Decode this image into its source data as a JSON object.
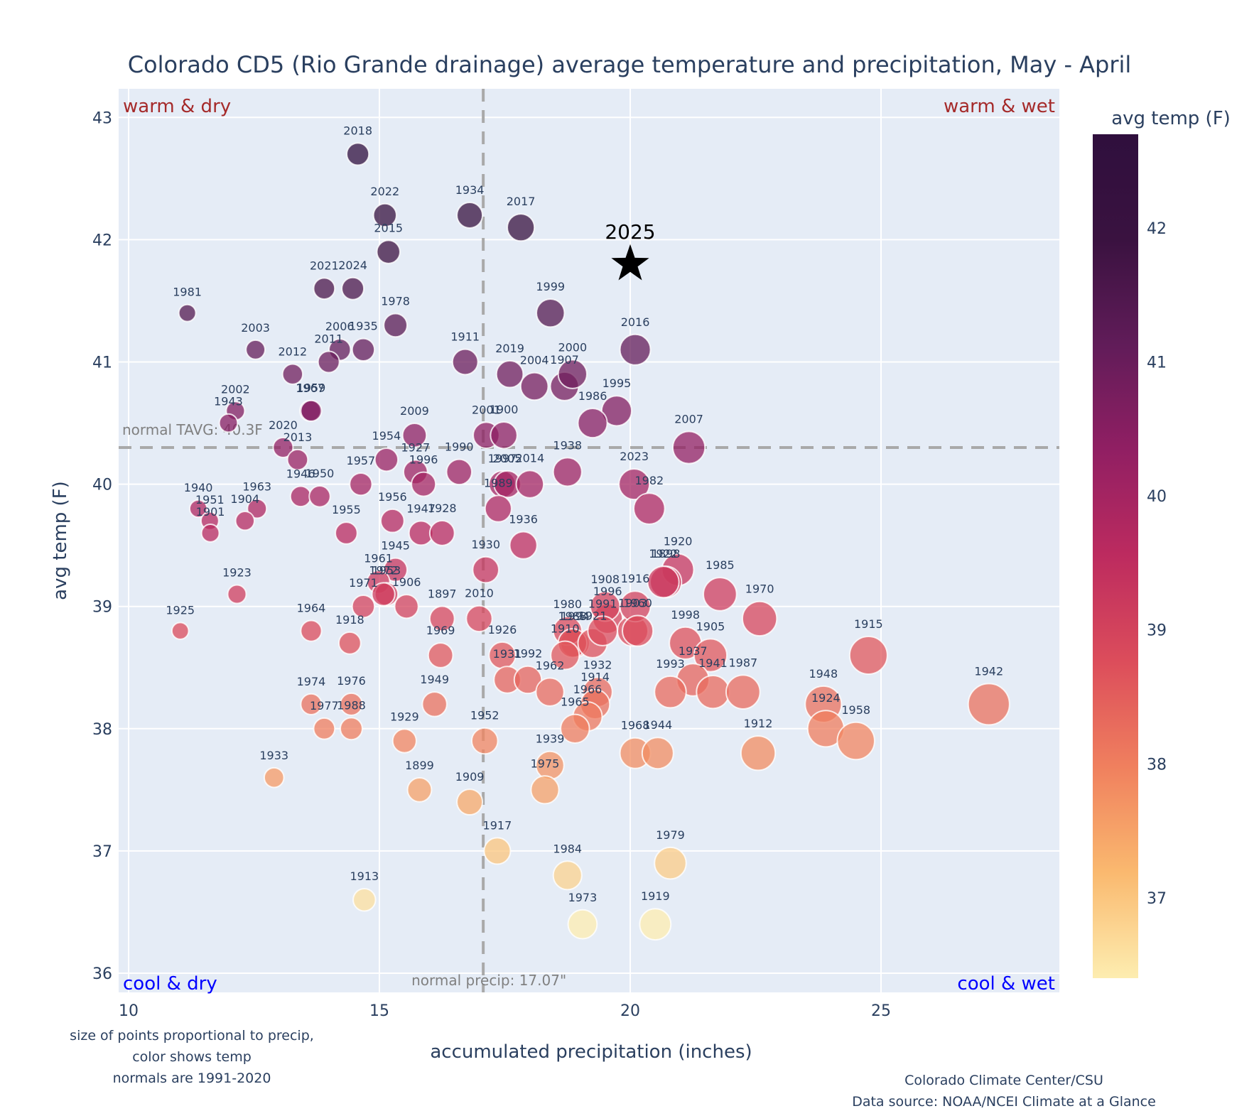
{
  "chart_data": {
    "type": "scatter",
    "title": "Colorado CD5 (Rio Grande drainage) average temperature and precipitation, May - April",
    "xlabel": "accumulated precipitation (inches)",
    "ylabel": "avg temp (F)",
    "xlim": [
      9.3,
      28.5
    ],
    "ylim": [
      35.84,
      43.13
    ],
    "xticks": [
      10,
      15,
      20,
      25
    ],
    "yticks": [
      36,
      37,
      38,
      39,
      40,
      41,
      42,
      43
    ],
    "grid": true,
    "colorbar": {
      "title": "avg temp (F)",
      "range": [
        36.4,
        42.7
      ],
      "ticks": [
        37,
        38,
        39,
        40,
        41,
        42
      ],
      "colorscale": [
        "#fdedb0",
        "#fab96f",
        "#f0805e",
        "#dc4d5b",
        "#bd2b5f",
        "#911f63",
        "#611c59",
        "#3a1240",
        "#2f0f3d"
      ]
    },
    "reference_lines": {
      "normal_temp": 40.3,
      "normal_temp_label": "normal TAVG: 40.3F",
      "normal_precip": 17.07,
      "normal_precip_label": "normal precip: 17.07\""
    },
    "quadrant_labels": {
      "top_left": "warm & dry",
      "top_right": "warm & wet",
      "bottom_left": "cool & dry",
      "bottom_right": "cool & wet"
    },
    "highlight": {
      "label": "2025",
      "x": 20.0,
      "y": 41.8,
      "marker": "star"
    },
    "points": [
      {
        "year": "2018",
        "x": 14.57,
        "y": 42.7
      },
      {
        "year": "2022",
        "x": 15.11,
        "y": 42.2
      },
      {
        "year": "2015",
        "x": 15.18,
        "y": 41.9
      },
      {
        "year": "1934",
        "x": 16.8,
        "y": 42.2
      },
      {
        "year": "2017",
        "x": 17.82,
        "y": 42.1
      },
      {
        "year": "1981",
        "x": 11.17,
        "y": 41.4
      },
      {
        "year": "2021",
        "x": 13.9,
        "y": 41.6
      },
      {
        "year": "2024",
        "x": 14.47,
        "y": 41.6
      },
      {
        "year": "1978",
        "x": 15.32,
        "y": 41.3
      },
      {
        "year": "1999",
        "x": 18.41,
        "y": 41.4
      },
      {
        "year": "2003",
        "x": 12.53,
        "y": 41.1
      },
      {
        "year": "2006",
        "x": 14.21,
        "y": 41.1
      },
      {
        "year": "1935",
        "x": 14.68,
        "y": 41.1
      },
      {
        "year": "2011",
        "x": 13.99,
        "y": 41.0
      },
      {
        "year": "2012",
        "x": 13.27,
        "y": 40.9
      },
      {
        "year": "1911",
        "x": 16.71,
        "y": 41.0
      },
      {
        "year": "2016",
        "x": 20.1,
        "y": 41.1
      },
      {
        "year": "2019",
        "x": 17.6,
        "y": 40.9
      },
      {
        "year": "2004",
        "x": 18.09,
        "y": 40.8
      },
      {
        "year": "1907",
        "x": 18.69,
        "y": 40.8
      },
      {
        "year": "2000",
        "x": 18.85,
        "y": 40.9
      },
      {
        "year": "1995",
        "x": 19.73,
        "y": 40.6
      },
      {
        "year": "1986",
        "x": 19.25,
        "y": 40.5
      },
      {
        "year": "1967",
        "x": 13.62,
        "y": 40.6
      },
      {
        "year": "1959",
        "x": 13.64,
        "y": 40.6
      },
      {
        "year": "2002",
        "x": 12.13,
        "y": 40.6
      },
      {
        "year": "1943",
        "x": 11.99,
        "y": 40.5
      },
      {
        "year": "2009",
        "x": 15.7,
        "y": 40.4
      },
      {
        "year": "2001",
        "x": 17.13,
        "y": 40.4
      },
      {
        "year": "1900",
        "x": 17.48,
        "y": 40.4
      },
      {
        "year": "2007",
        "x": 21.17,
        "y": 40.3
      },
      {
        "year": "2020",
        "x": 13.08,
        "y": 40.3
      },
      {
        "year": "2013",
        "x": 13.37,
        "y": 40.2
      },
      {
        "year": "1954",
        "x": 15.14,
        "y": 40.2
      },
      {
        "year": "1927",
        "x": 15.72,
        "y": 40.1
      },
      {
        "year": "1996",
        "x": 15.88,
        "y": 40.0
      },
      {
        "year": "1990",
        "x": 16.59,
        "y": 40.1
      },
      {
        "year": "1997",
        "x": 17.45,
        "y": 40.0
      },
      {
        "year": "2005",
        "x": 17.55,
        "y": 40.0
      },
      {
        "year": "2014",
        "x": 18.0,
        "y": 40.0
      },
      {
        "year": "1938",
        "x": 18.75,
        "y": 40.1
      },
      {
        "year": "2023",
        "x": 20.08,
        "y": 40.0
      },
      {
        "year": "1989",
        "x": 17.37,
        "y": 39.8
      },
      {
        "year": "1982",
        "x": 20.38,
        "y": 39.8
      },
      {
        "year": "1957",
        "x": 14.63,
        "y": 40.0
      },
      {
        "year": "1946",
        "x": 13.43,
        "y": 39.9
      },
      {
        "year": "1950",
        "x": 13.81,
        "y": 39.9
      },
      {
        "year": "1940",
        "x": 11.39,
        "y": 39.8
      },
      {
        "year": "1963",
        "x": 12.56,
        "y": 39.8
      },
      {
        "year": "1951",
        "x": 11.62,
        "y": 39.7
      },
      {
        "year": "1904",
        "x": 12.32,
        "y": 39.7
      },
      {
        "year": "1901",
        "x": 11.63,
        "y": 39.6
      },
      {
        "year": "1956",
        "x": 15.26,
        "y": 39.7
      },
      {
        "year": "1947",
        "x": 15.83,
        "y": 39.6
      },
      {
        "year": "1928",
        "x": 16.25,
        "y": 39.6
      },
      {
        "year": "1955",
        "x": 14.34,
        "y": 39.6
      },
      {
        "year": "1936",
        "x": 17.87,
        "y": 39.5
      },
      {
        "year": "1930",
        "x": 17.12,
        "y": 39.3
      },
      {
        "year": "1920",
        "x": 20.95,
        "y": 39.3
      },
      {
        "year": "1898",
        "x": 20.71,
        "y": 39.2
      },
      {
        "year": "1922",
        "x": 20.66,
        "y": 39.2
      },
      {
        "year": "1985",
        "x": 21.79,
        "y": 39.1
      },
      {
        "year": "1970",
        "x": 22.58,
        "y": 38.9
      },
      {
        "year": "1923",
        "x": 12.16,
        "y": 39.1
      },
      {
        "year": "1925",
        "x": 11.03,
        "y": 38.8
      },
      {
        "year": "1945",
        "x": 15.32,
        "y": 39.3
      },
      {
        "year": "1961",
        "x": 14.98,
        "y": 39.2
      },
      {
        "year": "1953",
        "x": 15.14,
        "y": 39.1
      },
      {
        "year": "1972",
        "x": 15.08,
        "y": 39.1
      },
      {
        "year": "1971",
        "x": 14.68,
        "y": 39.0
      },
      {
        "year": "1906",
        "x": 15.54,
        "y": 39.0
      },
      {
        "year": "1897",
        "x": 16.25,
        "y": 38.9
      },
      {
        "year": "2010",
        "x": 16.99,
        "y": 38.9
      },
      {
        "year": "1964",
        "x": 13.64,
        "y": 38.8
      },
      {
        "year": "1918",
        "x": 14.41,
        "y": 38.7
      },
      {
        "year": "1969",
        "x": 16.22,
        "y": 38.6
      },
      {
        "year": "1926",
        "x": 17.45,
        "y": 38.6
      },
      {
        "year": "1931",
        "x": 17.55,
        "y": 38.4
      },
      {
        "year": "1992",
        "x": 17.96,
        "y": 38.4
      },
      {
        "year": "1962",
        "x": 18.4,
        "y": 38.3
      },
      {
        "year": "1994",
        "x": 18.9,
        "y": 38.7
      },
      {
        "year": "1980",
        "x": 18.75,
        "y": 38.8
      },
      {
        "year": "1983",
        "x": 18.85,
        "y": 38.7
      },
      {
        "year": "1910",
        "x": 18.7,
        "y": 38.6
      },
      {
        "year": "1921",
        "x": 19.25,
        "y": 38.7
      },
      {
        "year": "1996b",
        "x": 19.55,
        "y": 38.9
      },
      {
        "year": "1903",
        "x": 20.05,
        "y": 38.8
      },
      {
        "year": "1908",
        "x": 19.5,
        "y": 39.0
      },
      {
        "year": "1916",
        "x": 20.1,
        "y": 39.0
      },
      {
        "year": "1991",
        "x": 19.45,
        "y": 38.8
      },
      {
        "year": "1960",
        "x": 20.15,
        "y": 38.8
      },
      {
        "year": "1932",
        "x": 19.35,
        "y": 38.3
      },
      {
        "year": "1914",
        "x": 19.3,
        "y": 38.2
      },
      {
        "year": "1966",
        "x": 19.15,
        "y": 38.1
      },
      {
        "year": "1965",
        "x": 18.9,
        "y": 38.0
      },
      {
        "year": "1998",
        "x": 21.1,
        "y": 38.7
      },
      {
        "year": "1905",
        "x": 21.6,
        "y": 38.6
      },
      {
        "year": "1937",
        "x": 21.25,
        "y": 38.4
      },
      {
        "year": "1993",
        "x": 20.8,
        "y": 38.3
      },
      {
        "year": "1941",
        "x": 21.65,
        "y": 38.3
      },
      {
        "year": "1987",
        "x": 22.25,
        "y": 38.3
      },
      {
        "year": "1912",
        "x": 22.55,
        "y": 37.8
      },
      {
        "year": "1948",
        "x": 23.85,
        "y": 38.2
      },
      {
        "year": "1924",
        "x": 23.9,
        "y": 38.0
      },
      {
        "year": "1958",
        "x": 24.5,
        "y": 37.9
      },
      {
        "year": "1915",
        "x": 24.75,
        "y": 38.6
      },
      {
        "year": "1942",
        "x": 27.15,
        "y": 38.2
      },
      {
        "year": "1974",
        "x": 13.64,
        "y": 38.2
      },
      {
        "year": "1976",
        "x": 14.44,
        "y": 38.2
      },
      {
        "year": "1977",
        "x": 13.9,
        "y": 38.0
      },
      {
        "year": "1988",
        "x": 14.44,
        "y": 38.0
      },
      {
        "year": "1949",
        "x": 16.1,
        "y": 38.2
      },
      {
        "year": "1929",
        "x": 15.5,
        "y": 37.9
      },
      {
        "year": "1952",
        "x": 17.1,
        "y": 37.9
      },
      {
        "year": "1939",
        "x": 18.4,
        "y": 37.7
      },
      {
        "year": "1975",
        "x": 18.3,
        "y": 37.5
      },
      {
        "year": "1968",
        "x": 20.1,
        "y": 37.8
      },
      {
        "year": "1944",
        "x": 20.55,
        "y": 37.8
      },
      {
        "year": "1933",
        "x": 12.9,
        "y": 37.6
      },
      {
        "year": "1899",
        "x": 15.8,
        "y": 37.5
      },
      {
        "year": "1909",
        "x": 16.8,
        "y": 37.4
      },
      {
        "year": "1917",
        "x": 17.35,
        "y": 37.0
      },
      {
        "year": "1984",
        "x": 18.75,
        "y": 36.8
      },
      {
        "year": "1979",
        "x": 20.8,
        "y": 36.9
      },
      {
        "year": "1913",
        "x": 14.7,
        "y": 36.6
      },
      {
        "year": "1973",
        "x": 19.05,
        "y": 36.4
      },
      {
        "year": "1919",
        "x": 20.5,
        "y": 36.4
      }
    ]
  },
  "notes": {
    "left": [
      "size of points proportional to precip,",
      "color shows temp",
      "normals are 1991-2020"
    ],
    "right": [
      "Colorado Climate Center/CSU",
      "Data source: NOAA/NCEI Climate at a Glance"
    ]
  }
}
